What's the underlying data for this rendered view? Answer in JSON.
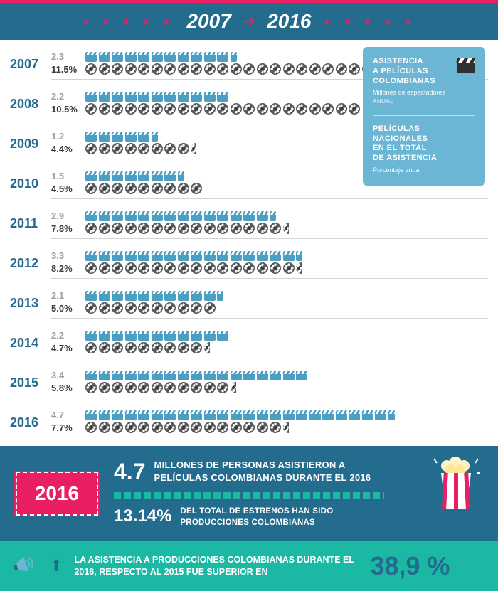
{
  "header": {
    "year_from": "2007",
    "year_to": "2016",
    "star_color": "#e91e63",
    "band_color": "#236c8e"
  },
  "rows": [
    {
      "year": "2007",
      "attendance": 2.3,
      "attendance_label": "2.3",
      "share": 11.5,
      "share_label": "11.5%"
    },
    {
      "year": "2008",
      "attendance": 2.2,
      "attendance_label": "2.2",
      "share": 10.5,
      "share_label": "10.5%"
    },
    {
      "year": "2009",
      "attendance": 1.2,
      "attendance_label": "1.2",
      "share": 4.4,
      "share_label": "4.4%"
    },
    {
      "year": "2010",
      "attendance": 1.5,
      "attendance_label": "1.5",
      "share": 4.5,
      "share_label": "4.5%"
    },
    {
      "year": "2011",
      "attendance": 2.9,
      "attendance_label": "2.9",
      "share": 7.8,
      "share_label": "7.8%"
    },
    {
      "year": "2012",
      "attendance": 3.3,
      "attendance_label": "3.3",
      "share": 8.2,
      "share_label": "8.2%"
    },
    {
      "year": "2013",
      "attendance": 2.1,
      "attendance_label": "2.1",
      "share": 5.0,
      "share_label": "5.0%"
    },
    {
      "year": "2014",
      "attendance": 2.2,
      "attendance_label": "2.2",
      "share": 4.7,
      "share_label": "4.7%"
    },
    {
      "year": "2015",
      "attendance": 3.4,
      "attendance_label": "3.4",
      "share": 5.8,
      "share_label": "5.8%"
    },
    {
      "year": "2016",
      "attendance": 4.7,
      "attendance_label": "4.7",
      "share": 7.7,
      "share_label": "7.7%"
    }
  ],
  "chart_style": {
    "type": "pictogram",
    "icon_unit_attendance": 0.2,
    "icon_unit_share": 0.5,
    "clapper_color": "#4a9fc2",
    "reel_color": "#5a5a5a",
    "attendance_value_color": "#9aa0a4",
    "share_value_color": "#3a3a3a",
    "year_color": "#236c8e",
    "separator_color": "#cfd4d7",
    "background": "#ffffff"
  },
  "legend": {
    "bg": "#6ab6d4",
    "block1_title": "ASISTENCIA\nA PELÍCULAS\nCOLOMBIANAS",
    "block1_sub": "Millones de espectadores",
    "block1_sub2": "ANUAL",
    "block2_title": "PELÍCULAS\nNACIONALES\nEN EL TOTAL\nDE ASISTENCIA",
    "block2_sub": "Porcentaje anual"
  },
  "panel2016": {
    "bg": "#236c8e",
    "badge_bg": "#e91e63",
    "year": "2016",
    "line1_num": "4.7",
    "line1_text": "MILLONES DE PERSONAS ASISTIERON A PELÍCULAS  COLOMBIANAS DURANTE EL 2016",
    "line2_num": "13.14%",
    "line2_text": "DEL TOTAL DE ESTRENOS HAN SIDO PRODUCCIONES COLOMBIANAS",
    "separator_color": "#1bb8a4"
  },
  "greenbar": {
    "bg": "#1bb8a4",
    "text": "LA ASISTENCIA A PRODUCCIONES COLOMBIANAS DURANTE EL 2016, RESPECTO AL 2015 FUE SUPERIOR EN",
    "pct": "38,9 %",
    "pct_color": "#236c8e"
  }
}
